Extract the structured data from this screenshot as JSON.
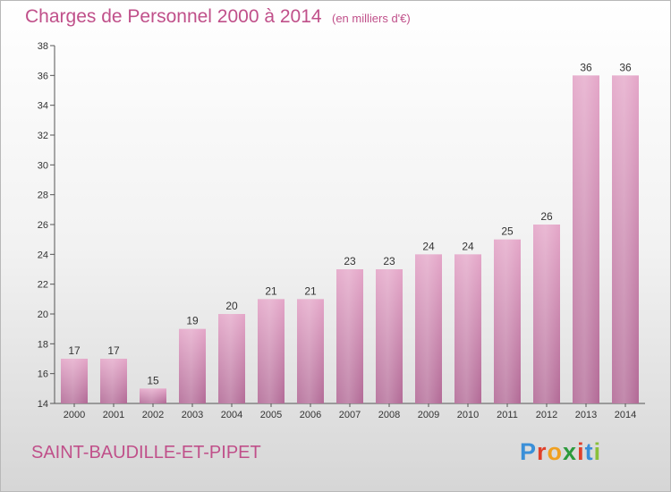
{
  "title": "Charges de Personnel 2000 à 2014",
  "subtitle": "(en milliers d'€)",
  "commune": "SAINT-BAUDILLE-ET-PIPET",
  "logo": {
    "letters": [
      "P",
      "r",
      "o",
      "x",
      "i",
      "t",
      "i"
    ],
    "colors": [
      "#3a8fd8",
      "#e0402a",
      "#f0a020",
      "#2c9a3c",
      "#e0402a",
      "#3a8fd8",
      "#8ac03a"
    ]
  },
  "chart_data": {
    "type": "bar",
    "categories": [
      "2000",
      "2001",
      "2002",
      "2003",
      "2004",
      "2005",
      "2006",
      "2007",
      "2008",
      "2009",
      "2010",
      "2011",
      "2012",
      "2013",
      "2014"
    ],
    "values": [
      17,
      17,
      15,
      19,
      20,
      21,
      21,
      23,
      23,
      24,
      24,
      25,
      26,
      36,
      36
    ],
    "ylim": [
      14,
      38
    ],
    "yticks": [
      14,
      16,
      18,
      20,
      22,
      24,
      26,
      28,
      30,
      32,
      34,
      36,
      38
    ],
    "grid": false,
    "bar_color": "#d97fb0"
  }
}
